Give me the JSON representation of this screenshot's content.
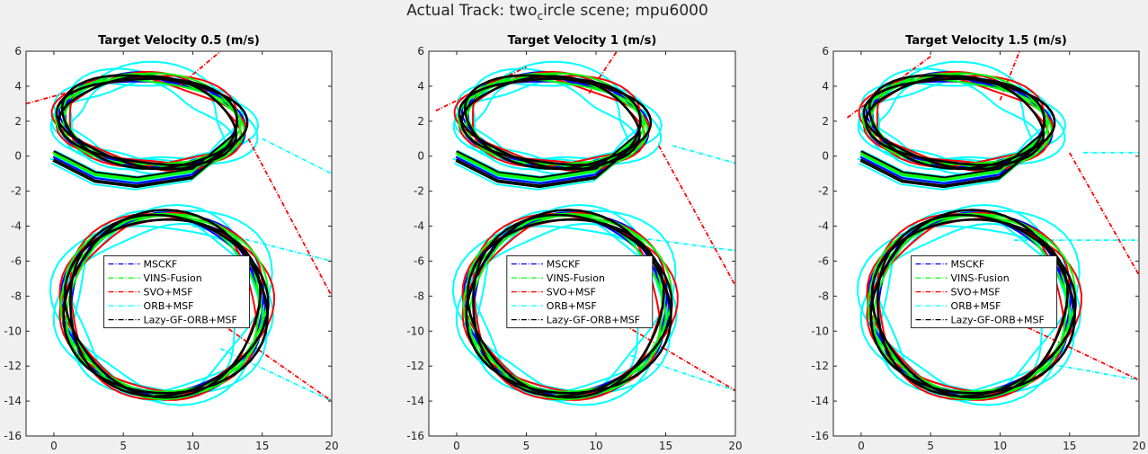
{
  "figure": {
    "suptitle_pre": "Actual Track: two",
    "suptitle_sub": "c",
    "suptitle_post": "ircle scene; mpu6000"
  },
  "chart_data": [
    {
      "type": "line",
      "title": "Target Velocity 0.5 (m/s)",
      "xlim": [
        -2,
        20
      ],
      "ylim": [
        -16,
        6
      ],
      "xticks": [
        0,
        5,
        10,
        15,
        20
      ],
      "yticks": [
        6,
        4,
        2,
        0,
        -2,
        -4,
        -6,
        -8,
        -10,
        -12,
        -14,
        -16
      ],
      "grid": false,
      "legend_position": "center",
      "series": [
        {
          "name": "MSCKF",
          "color": "#0000ff"
        },
        {
          "name": "VINS-Fusion",
          "color": "#00ff00"
        },
        {
          "name": "SVO+MSF",
          "color": "#ff0000"
        },
        {
          "name": "ORB+MSF",
          "color": "#00ffff"
        },
        {
          "name": "Lazy-GF-ORB+MSF",
          "color": "#000000"
        }
      ]
    },
    {
      "type": "line",
      "title": "Target Velocity 1 (m/s)",
      "xlim": [
        -2,
        20
      ],
      "ylim": [
        -16,
        6
      ],
      "xticks": [
        0,
        5,
        10,
        15,
        20
      ],
      "yticks": [
        6,
        4,
        2,
        0,
        -2,
        -4,
        -6,
        -8,
        -10,
        -12,
        -14,
        -16
      ],
      "grid": false,
      "legend_position": "center",
      "series": [
        {
          "name": "MSCKF",
          "color": "#0000ff"
        },
        {
          "name": "VINS-Fusion",
          "color": "#00ff00"
        },
        {
          "name": "SVO+MSF",
          "color": "#ff0000"
        },
        {
          "name": "ORB+MSF",
          "color": "#00ffff"
        },
        {
          "name": "Lazy-GF-ORB+MSF",
          "color": "#000000"
        }
      ]
    },
    {
      "type": "line",
      "title": "Target Velocity 1.5 (m/s)",
      "xlim": [
        -2,
        20
      ],
      "ylim": [
        -16,
        6
      ],
      "xticks": [
        0,
        5,
        10,
        15,
        20
      ],
      "yticks": [
        6,
        4,
        2,
        0,
        -2,
        -4,
        -6,
        -8,
        -10,
        -12,
        -14,
        -16
      ],
      "grid": false,
      "legend_position": "center",
      "series": [
        {
          "name": "MSCKF",
          "color": "#0000ff"
        },
        {
          "name": "VINS-Fusion",
          "color": "#00ff00"
        },
        {
          "name": "SVO+MSF",
          "color": "#ff0000"
        },
        {
          "name": "ORB+MSF",
          "color": "#00ffff"
        },
        {
          "name": "Lazy-GF-ORB+MSF",
          "color": "#000000"
        }
      ]
    }
  ]
}
